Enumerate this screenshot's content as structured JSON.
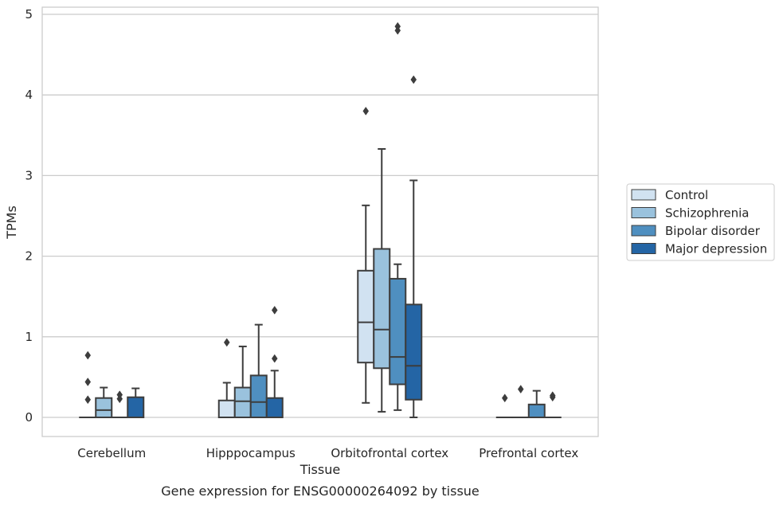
{
  "chart_data": {
    "type": "box",
    "title": "",
    "caption": "Gene expression for ENSG00000264092 by tissue",
    "xlabel": "Tissue",
    "ylabel": "TPMs",
    "ylim": [
      -0.23,
      5.08
    ],
    "yticks": [
      0,
      1,
      2,
      3,
      4,
      5
    ],
    "grid": "horizontal",
    "legend_position": "right",
    "categories": [
      "Cerebellum",
      "Hipppocampus",
      "Orbitofrontal cortex",
      "Prefrontal cortex"
    ],
    "series": [
      {
        "name": "Control",
        "color": "#d1e2f1",
        "boxes": [
          {
            "whislo": 0,
            "q1": 0,
            "med": 0,
            "q3": 0,
            "whishi": 0,
            "fliers": [
              0.22,
              0.44,
              0.77
            ]
          },
          {
            "whislo": 0,
            "q1": 0,
            "med": 0,
            "q3": 0.21,
            "whishi": 0.43,
            "fliers": [
              0.93
            ]
          },
          {
            "whislo": 0.18,
            "q1": 0.68,
            "med": 1.18,
            "q3": 1.82,
            "whishi": 2.63,
            "fliers": [
              3.8
            ]
          },
          {
            "whislo": 0,
            "q1": 0,
            "med": 0,
            "q3": 0,
            "whishi": 0,
            "fliers": [
              0.24
            ]
          }
        ]
      },
      {
        "name": "Schizophrenia",
        "color": "#9ac2dd",
        "boxes": [
          {
            "whislo": 0,
            "q1": 0,
            "med": 0.09,
            "q3": 0.24,
            "whishi": 0.37,
            "fliers": []
          },
          {
            "whislo": 0,
            "q1": 0,
            "med": 0.2,
            "q3": 0.37,
            "whishi": 0.88,
            "fliers": []
          },
          {
            "whislo": 0.07,
            "q1": 0.61,
            "med": 1.09,
            "q3": 2.09,
            "whishi": 3.33,
            "fliers": []
          },
          {
            "whislo": 0,
            "q1": 0,
            "med": 0,
            "q3": 0,
            "whishi": 0,
            "fliers": [
              0.35
            ]
          }
        ]
      },
      {
        "name": "Bipolar disorder",
        "color": "#4f8fc0",
        "boxes": [
          {
            "whislo": 0,
            "q1": 0,
            "med": 0,
            "q3": 0,
            "whishi": 0,
            "fliers": [
              0.23,
              0.28
            ]
          },
          {
            "whislo": 0,
            "q1": 0,
            "med": 0.19,
            "q3": 0.52,
            "whishi": 1.15,
            "fliers": []
          },
          {
            "whislo": 0.09,
            "q1": 0.41,
            "med": 0.75,
            "q3": 1.72,
            "whishi": 1.9,
            "fliers": [
              4.8,
              4.85
            ]
          },
          {
            "whislo": 0,
            "q1": 0,
            "med": 0,
            "q3": 0.16,
            "whishi": 0.33,
            "fliers": []
          }
        ]
      },
      {
        "name": "Major depression",
        "color": "#2465a5",
        "boxes": [
          {
            "whislo": 0,
            "q1": 0,
            "med": 0,
            "q3": 0.25,
            "whishi": 0.36,
            "fliers": []
          },
          {
            "whislo": 0,
            "q1": 0,
            "med": 0,
            "q3": 0.24,
            "whishi": 0.58,
            "fliers": [
              0.73,
              1.33
            ]
          },
          {
            "whislo": 0,
            "q1": 0.22,
            "med": 0.64,
            "q3": 1.4,
            "whishi": 2.94,
            "fliers": [
              4.19
            ]
          },
          {
            "whislo": 0,
            "q1": 0,
            "med": 0,
            "q3": 0,
            "whishi": 0,
            "fliers": [
              0.25,
              0.27
            ]
          }
        ]
      }
    ]
  }
}
